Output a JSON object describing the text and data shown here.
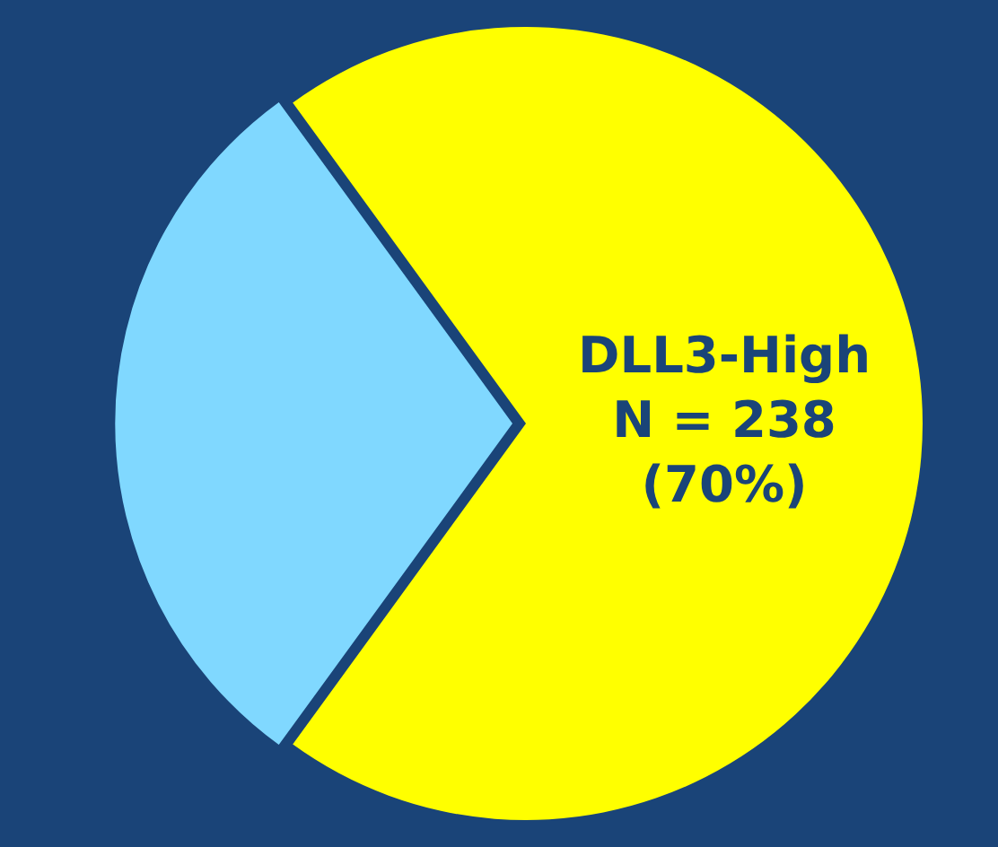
{
  "chart_data": {
    "type": "pie",
    "categories": [
      "DLL3-High",
      null
    ],
    "values": [
      70,
      30
    ],
    "colors": [
      "#ffff00",
      "#80d8ff"
    ],
    "value_labels": [
      "N = 238\n(70%)",
      null
    ],
    "legend": false
  }
}
